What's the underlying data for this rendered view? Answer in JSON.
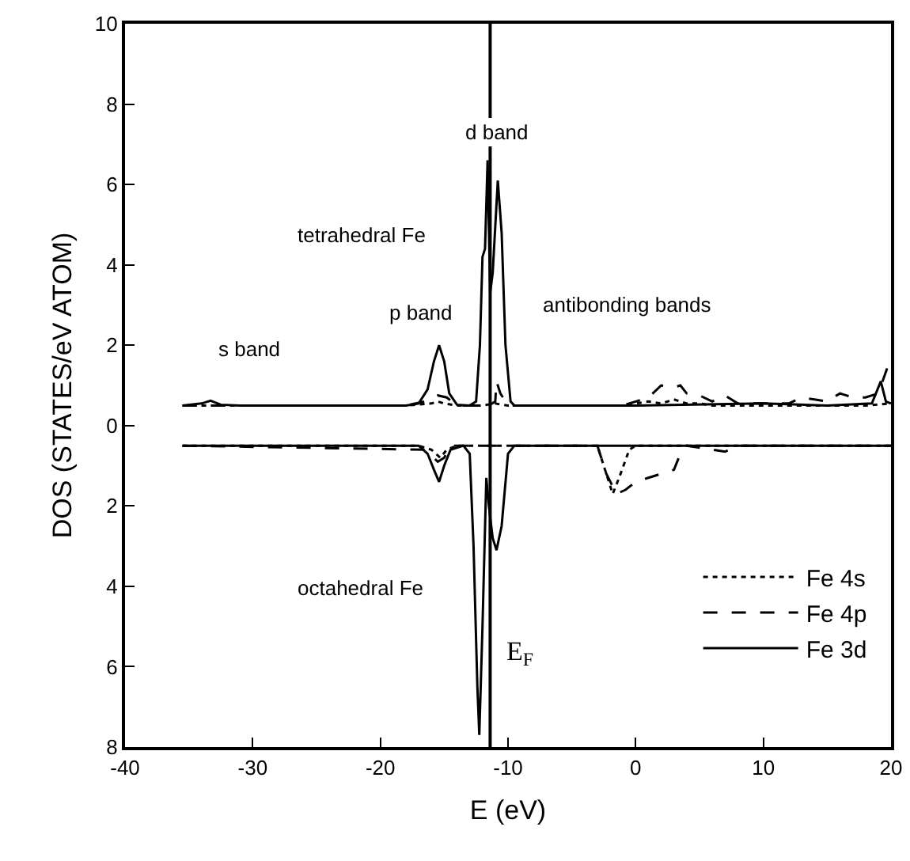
{
  "chart_data": {
    "type": "line",
    "xlabel": "E (eV)",
    "ylabel": "DOS (STATES/eV ATOM)",
    "xlim": [
      -40,
      20
    ],
    "xticks": [
      -40,
      -30,
      -20,
      -10,
      0,
      10,
      20
    ],
    "ylim": [
      -8,
      10
    ],
    "yticks": [
      {
        "value": -8,
        "label": "8"
      },
      {
        "value": -6,
        "label": "6"
      },
      {
        "value": -4,
        "label": "4"
      },
      {
        "value": -2,
        "label": "2"
      },
      0,
      2,
      4,
      6,
      8,
      10
    ],
    "grid": false,
    "legend": "bottom right",
    "marker": "none",
    "series": [
      {
        "name": "Fe 4s",
        "color": "#000000",
        "line_style": "dotted",
        "x": [
          -35.5,
          -18,
          -16,
          -15.5,
          -15,
          -14,
          -12,
          -11,
          -10.5,
          -10,
          -1,
          1,
          2,
          3,
          4,
          5,
          6,
          18,
          20
        ],
        "values": [
          0.5,
          0.5,
          0.55,
          0.6,
          0.55,
          0.5,
          0.5,
          0.55,
          0.52,
          0.5,
          0.5,
          0.6,
          0.55,
          0.65,
          0.55,
          0.55,
          0.5,
          0.5,
          0.55
        ]
      },
      {
        "name": "Fe 4p",
        "color": "#000000",
        "line_style": "dashed",
        "x": [
          -35.5,
          -18,
          -16.5,
          -15.5,
          -14.8,
          -14,
          -11.5,
          -11,
          -10.9,
          -10.6,
          -10,
          -1,
          0,
          1,
          2,
          3,
          3.5,
          4,
          5,
          6,
          7,
          8,
          12,
          13,
          14,
          15,
          16,
          17,
          18,
          19,
          20
        ],
        "values": [
          0.5,
          0.5,
          0.6,
          0.75,
          0.7,
          0.5,
          0.5,
          0.6,
          1.1,
          0.8,
          0.5,
          0.5,
          0.6,
          0.7,
          1.0,
          0.95,
          1.0,
          0.8,
          0.75,
          0.6,
          0.75,
          0.55,
          0.55,
          0.7,
          0.65,
          0.6,
          0.8,
          0.7,
          0.7,
          0.8,
          1.7
        ]
      },
      {
        "name": "Fe 3d",
        "color": "#000000",
        "line_style": "solid",
        "x": [
          -35.5,
          -34,
          -33.3,
          -32.5,
          -31,
          -18,
          -17,
          -16.3,
          -15.8,
          -15.4,
          -15,
          -14.6,
          -14,
          -13,
          -12.5,
          -12.2,
          -12,
          -11.8,
          -11.6,
          -11.4,
          -11.2,
          -10.8,
          -10.5,
          -10.2,
          -9.8,
          -9.5,
          0,
          10,
          15,
          18.5,
          19.2,
          19.6,
          20
        ],
        "values": [
          0.5,
          0.55,
          0.62,
          0.52,
          0.5,
          0.5,
          0.55,
          0.9,
          1.6,
          2.0,
          1.6,
          0.8,
          0.52,
          0.5,
          0.6,
          2.0,
          4.2,
          4.4,
          6.6,
          3.3,
          3.8,
          6.1,
          4.8,
          2.0,
          0.6,
          0.5,
          0.5,
          0.55,
          0.5,
          0.55,
          1.1,
          0.6,
          0.55
        ]
      },
      {
        "color": "#000000",
        "line_style": "dotted",
        "x": [
          -35.5,
          -17,
          -16,
          -15.3,
          -14.8,
          -14,
          -3,
          -2.5,
          -2,
          -1.8,
          -1.3,
          -0.5,
          0,
          20
        ],
        "values": [
          -0.5,
          -0.5,
          -0.6,
          -0.8,
          -0.6,
          -0.5,
          -0.5,
          -1.0,
          -1.5,
          -1.7,
          -1.3,
          -0.6,
          -0.5,
          -0.5
        ]
      },
      {
        "color": "#000000",
        "line_style": "dashed",
        "x": [
          -35.5,
          -16.5,
          -15.5,
          -15,
          -14.5,
          -3,
          -2.3,
          -1.5,
          -0.8,
          0,
          1,
          2,
          3,
          3.5,
          4,
          6,
          7,
          8,
          20
        ],
        "values": [
          -0.5,
          -0.6,
          -0.9,
          -0.8,
          -0.5,
          -0.5,
          -1.2,
          -1.7,
          -1.6,
          -1.4,
          -1.3,
          -1.2,
          -1.1,
          -0.7,
          -0.5,
          -0.6,
          -0.65,
          -0.5,
          -0.5
        ]
      },
      {
        "color": "#000000",
        "line_style": "solid",
        "x": [
          -35.5,
          -17,
          -16.3,
          -15.8,
          -15.4,
          -15,
          -14.5,
          -13.5,
          -13,
          -12.7,
          -12.4,
          -12.25,
          -12,
          -11.7,
          -11.5,
          -11.2,
          -10.9,
          -10.5,
          -10,
          -9.5,
          20
        ],
        "values": [
          -0.5,
          -0.5,
          -0.7,
          -1.1,
          -1.4,
          -1.0,
          -0.6,
          -0.5,
          -0.7,
          -3.0,
          -6.5,
          -7.7,
          -5.0,
          -1.3,
          -2.0,
          -2.8,
          -3.1,
          -2.5,
          -0.7,
          -0.5,
          -0.5
        ]
      }
    ],
    "ref_lines": [
      {
        "axis": "x",
        "value": -11.4,
        "label": "E$_{F}$",
        "color": "#000000"
      }
    ],
    "annotations": [
      "tetrahedral Fe",
      "s band",
      "p band",
      {
        "text": "d band",
        "x": -10.9,
        "y": 7.3
      },
      "antibonding bands",
      "octahedral Fe"
    ]
  }
}
